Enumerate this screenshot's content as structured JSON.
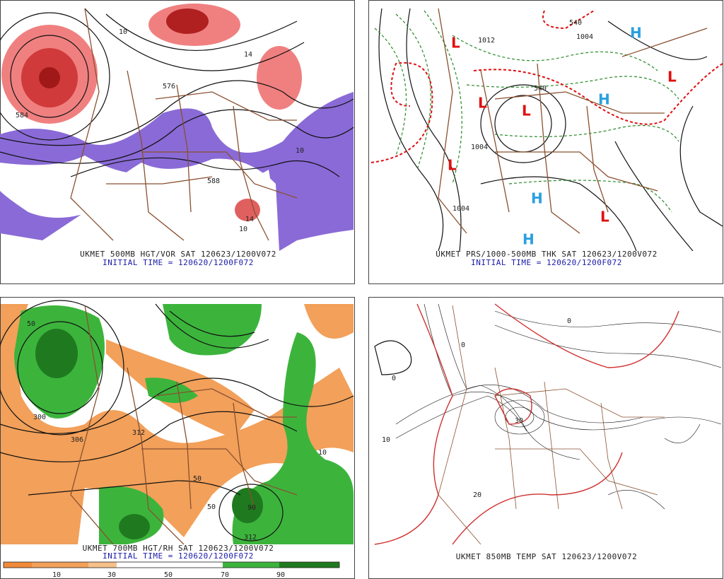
{
  "panels": [
    {
      "caption": "UKMET 500MB HGT/VOR SAT 120623/1200V072",
      "initial_time": "INITIAL TIME = 120620/1200F072",
      "labels": [
        "584",
        "588",
        "576",
        "10",
        "14",
        "10",
        "14",
        "10"
      ]
    },
    {
      "caption": "UKMET PRS/1000-500MB THK SAT 120623/1200V072",
      "initial_time": "INITIAL TIME = 120620/1200F072",
      "lows": [
        "L",
        "L",
        "L",
        "L",
        "L",
        "L"
      ],
      "highs": [
        "H",
        "H",
        "H",
        "H"
      ],
      "labels": [
        "1012",
        "1004",
        "1004",
        "1004",
        "540",
        "540"
      ]
    },
    {
      "caption": "UKMET 700MB HGT/RH SAT 120623/1200V072",
      "initial_time": "INITIAL TIME = 120620/1200F072",
      "labels": [
        "50",
        "300",
        "306",
        "312",
        "50",
        "50",
        "90",
        "312",
        "10"
      ]
    },
    {
      "caption": "UKMET 850MB TEMP SAT 120623/1200V072",
      "labels": [
        "0",
        "0",
        "0",
        "20",
        "10",
        "30"
      ]
    }
  ],
  "colorbar": {
    "ticks": [
      10,
      30,
      50,
      70,
      90
    ]
  }
}
